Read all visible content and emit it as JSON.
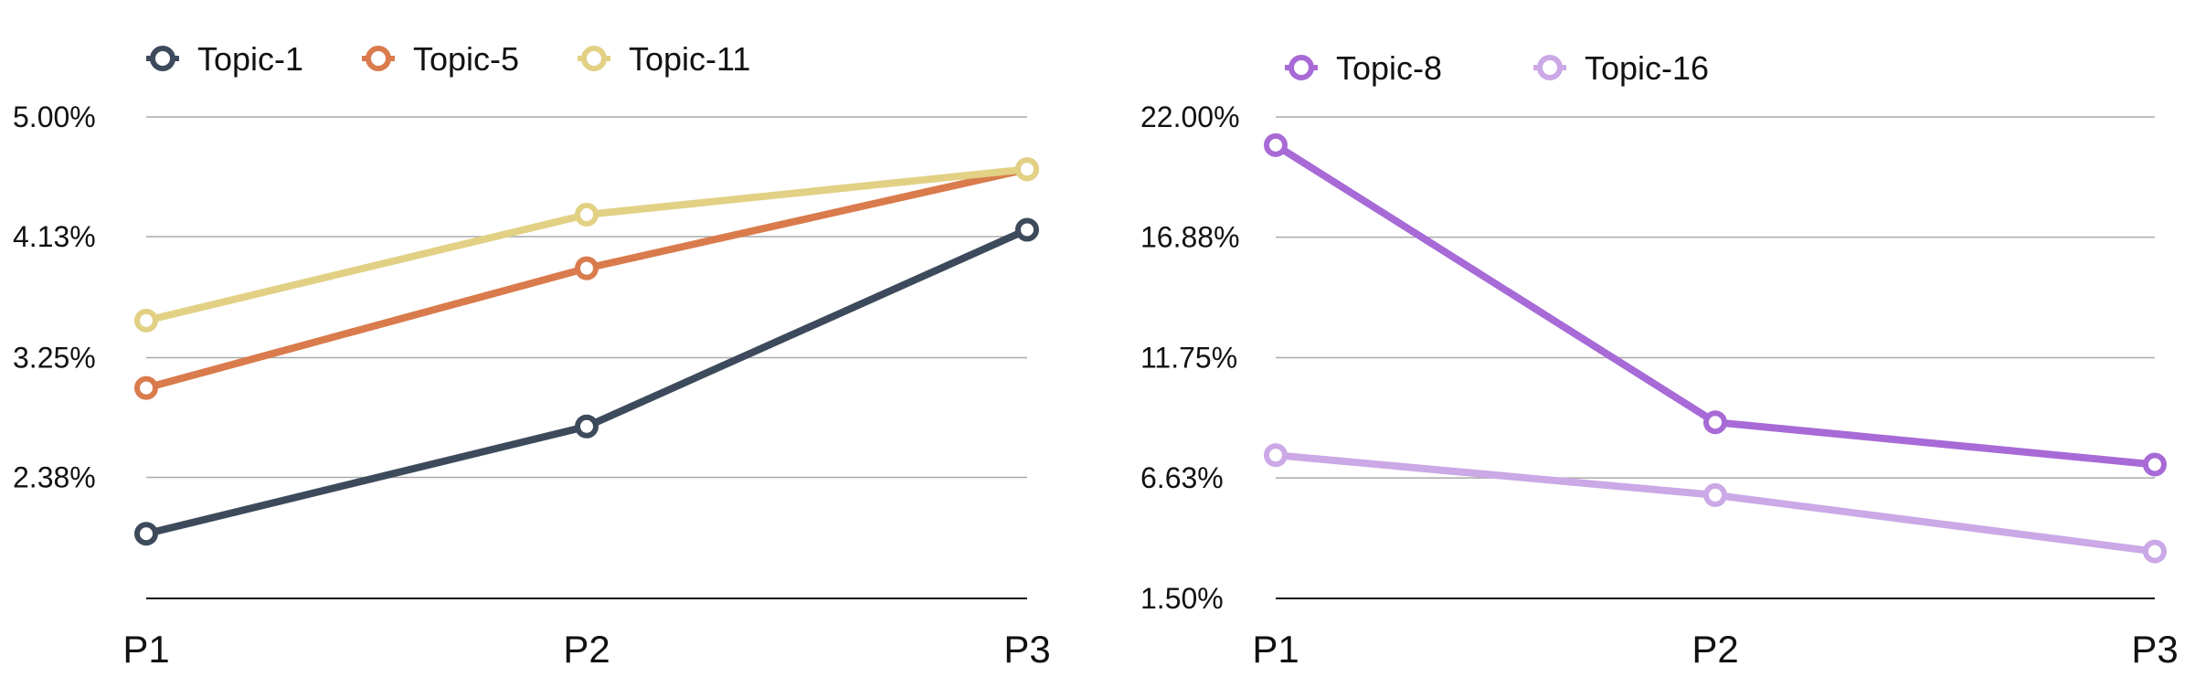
{
  "chart_data": [
    {
      "type": "line",
      "categories": [
        "P1",
        "P2",
        "P3"
      ],
      "y_ticks": [
        "2.38%",
        "3.25%",
        "4.13%",
        "5.00%"
      ],
      "ylim": [
        1.5,
        5.0
      ],
      "grid": true,
      "legend_position": "top-left",
      "series": [
        {
          "name": "Topic-1",
          "color": "#3d4a5c",
          "values": [
            1.97,
            2.75,
            4.18
          ]
        },
        {
          "name": "Topic-5",
          "color": "#d97b4c",
          "values": [
            3.03,
            3.9,
            4.62
          ]
        },
        {
          "name": "Topic-11",
          "color": "#e2d084",
          "values": [
            3.52,
            4.29,
            4.62
          ]
        }
      ]
    },
    {
      "type": "line",
      "categories": [
        "P1",
        "P2",
        "P3"
      ],
      "y_ticks": [
        "1.50%",
        "6.63%",
        "11.75%",
        "16.88%",
        "22.00%"
      ],
      "ylim": [
        1.5,
        22.0
      ],
      "grid": true,
      "legend_position": "top-left",
      "series": [
        {
          "name": "Topic-8",
          "color": "#a76ad6",
          "values": [
            20.8,
            9.0,
            7.2
          ]
        },
        {
          "name": "Topic-16",
          "color": "#cba8e6",
          "values": [
            7.6,
            5.9,
            3.5
          ]
        }
      ]
    }
  ]
}
